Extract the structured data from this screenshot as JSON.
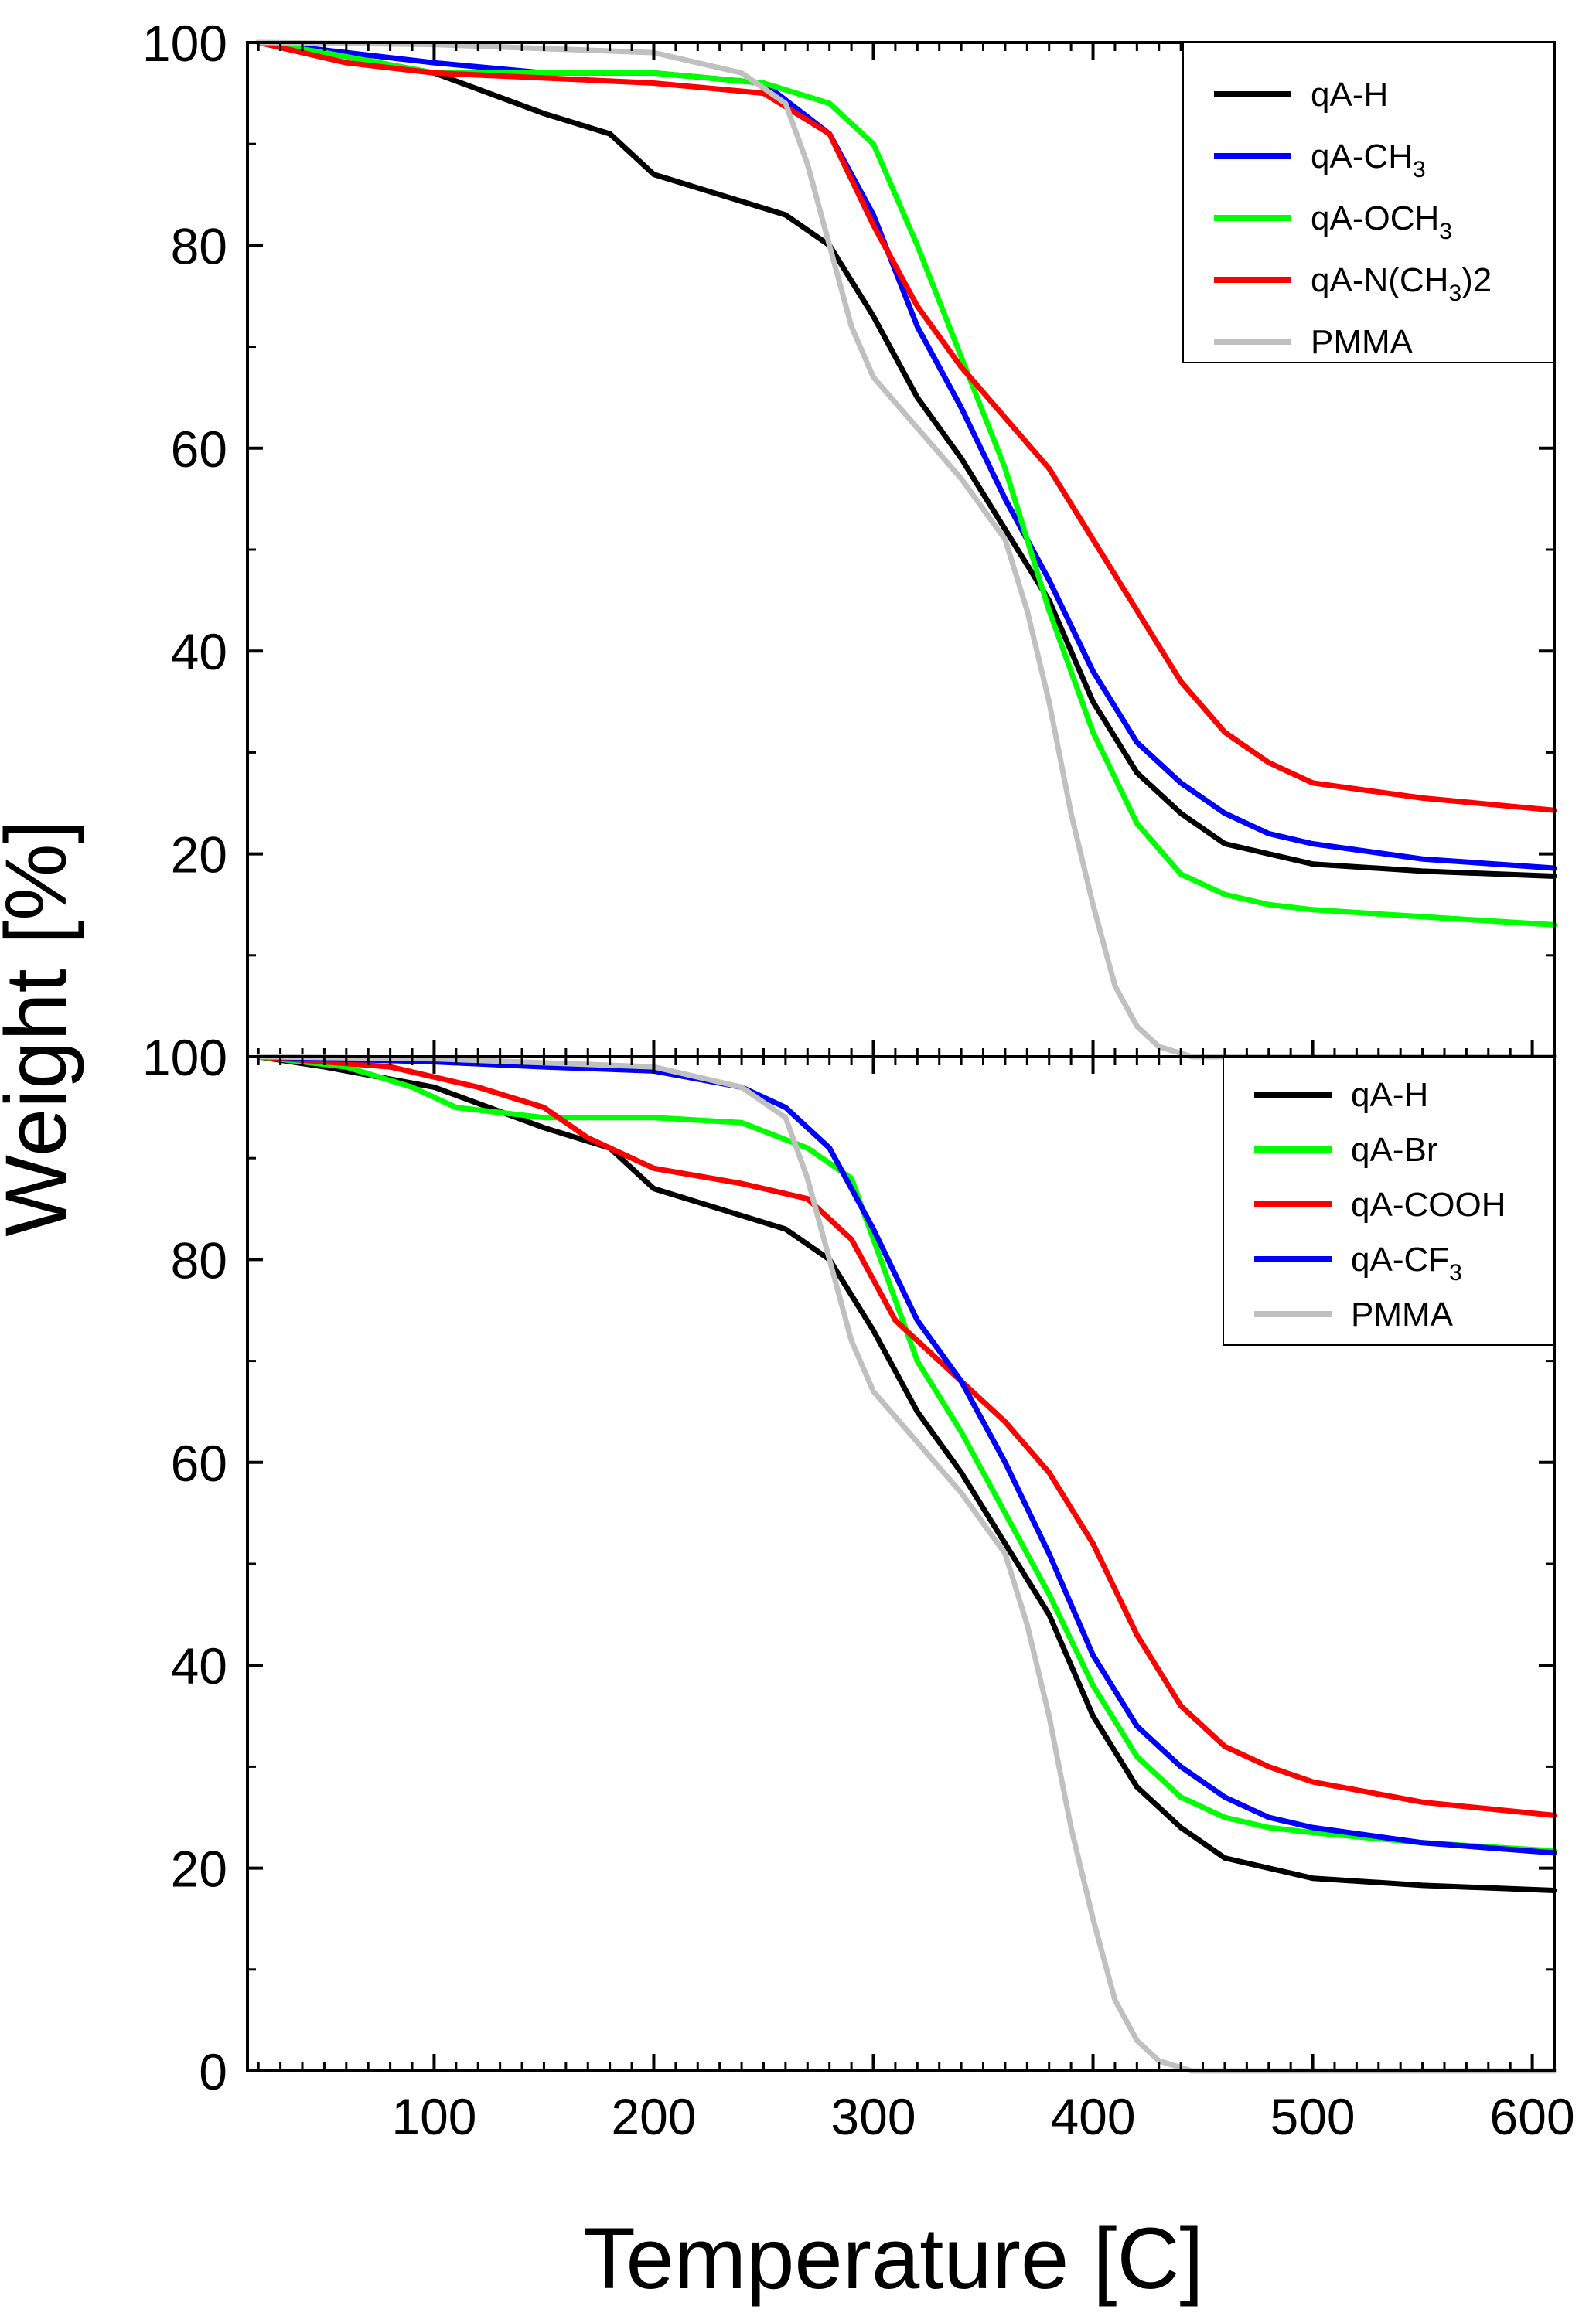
{
  "chart_data": [
    {
      "type": "line",
      "panel": "top",
      "xlabel": "Temperature [C]",
      "ylabel": "Weight [%]",
      "xlim": [
        15,
        610
      ],
      "ylim": [
        0,
        100
      ],
      "x_ticks": [
        "100",
        "200",
        "300",
        "400",
        "500",
        "600"
      ],
      "y_ticks": [
        "0",
        "20",
        "40",
        "60",
        "80",
        "100"
      ],
      "legend_position": "top-right",
      "series": [
        {
          "name": "qA-H",
          "label_main": "qA-H",
          "label_sub": "",
          "label_tail": "",
          "color": "#000000",
          "points": [
            [
              20,
              100
            ],
            [
              50,
              99
            ],
            [
              100,
              97
            ],
            [
              150,
              93
            ],
            [
              180,
              91
            ],
            [
              200,
              87
            ],
            [
              230,
              85
            ],
            [
              260,
              83
            ],
            [
              280,
              80
            ],
            [
              300,
              73
            ],
            [
              320,
              65
            ],
            [
              340,
              59
            ],
            [
              360,
              52
            ],
            [
              380,
              45
            ],
            [
              400,
              35
            ],
            [
              420,
              28
            ],
            [
              440,
              24
            ],
            [
              460,
              21
            ],
            [
              480,
              20
            ],
            [
              500,
              19
            ],
            [
              550,
              18.3
            ],
            [
              610,
              17.8
            ]
          ]
        },
        {
          "name": "qA-CH3",
          "label_main": "qA-CH",
          "label_sub": "3",
          "label_tail": "",
          "color": "#0000ff",
          "points": [
            [
              20,
              100
            ],
            [
              60,
              99
            ],
            [
              100,
              98
            ],
            [
              150,
              97
            ],
            [
              200,
              97
            ],
            [
              250,
              96
            ],
            [
              280,
              91
            ],
            [
              300,
              83
            ],
            [
              320,
              72
            ],
            [
              340,
              64
            ],
            [
              360,
              55
            ],
            [
              380,
              47
            ],
            [
              400,
              38
            ],
            [
              420,
              31
            ],
            [
              440,
              27
            ],
            [
              460,
              24
            ],
            [
              480,
              22
            ],
            [
              500,
              21
            ],
            [
              550,
              19.5
            ],
            [
              610,
              18.6
            ]
          ]
        },
        {
          "name": "qA-OCH3",
          "label_main": "qA-OCH",
          "label_sub": "3",
          "label_tail": "",
          "color": "#00ff00",
          "points": [
            [
              20,
              100
            ],
            [
              50,
              99
            ],
            [
              100,
              97
            ],
            [
              150,
              97
            ],
            [
              200,
              97
            ],
            [
              250,
              96
            ],
            [
              280,
              94
            ],
            [
              300,
              90
            ],
            [
              320,
              80
            ],
            [
              340,
              69
            ],
            [
              360,
              58
            ],
            [
              380,
              44
            ],
            [
              400,
              32
            ],
            [
              420,
              23
            ],
            [
              440,
              18
            ],
            [
              460,
              16
            ],
            [
              480,
              15
            ],
            [
              500,
              14.5
            ],
            [
              550,
              13.8
            ],
            [
              610,
              13
            ]
          ]
        },
        {
          "name": "qA-N(CH3)2",
          "label_main": "qA-N(CH",
          "label_sub": "3",
          "label_tail": ")2",
          "color": "#ff0000",
          "points": [
            [
              20,
              100
            ],
            [
              60,
              98
            ],
            [
              100,
              97
            ],
            [
              150,
              96.5
            ],
            [
              200,
              96
            ],
            [
              250,
              95
            ],
            [
              280,
              91
            ],
            [
              300,
              82
            ],
            [
              320,
              74
            ],
            [
              340,
              68
            ],
            [
              360,
              63
            ],
            [
              380,
              58
            ],
            [
              400,
              51
            ],
            [
              420,
              44
            ],
            [
              440,
              37
            ],
            [
              460,
              32
            ],
            [
              480,
              29
            ],
            [
              500,
              27
            ],
            [
              550,
              25.5
            ],
            [
              610,
              24.3
            ]
          ]
        },
        {
          "name": "PMMA",
          "label_main": "PMMA",
          "label_sub": "",
          "label_tail": "",
          "color": "#c0c0c0",
          "points": [
            [
              20,
              100
            ],
            [
              100,
              99.8
            ],
            [
              200,
              99
            ],
            [
              240,
              97
            ],
            [
              260,
              94
            ],
            [
              270,
              88
            ],
            [
              280,
              80
            ],
            [
              290,
              72
            ],
            [
              300,
              67
            ],
            [
              320,
              62
            ],
            [
              340,
              57
            ],
            [
              360,
              51
            ],
            [
              370,
              44
            ],
            [
              380,
              35
            ],
            [
              390,
              24
            ],
            [
              400,
              15
            ],
            [
              410,
              7
            ],
            [
              420,
              3
            ],
            [
              430,
              1
            ],
            [
              445,
              0
            ],
            [
              610,
              0
            ]
          ]
        }
      ]
    },
    {
      "type": "line",
      "panel": "bottom",
      "xlabel": "Temperature [C]",
      "ylabel": "Weight [%]",
      "xlim": [
        15,
        610
      ],
      "ylim": [
        0,
        100
      ],
      "x_ticks": [
        "100",
        "200",
        "300",
        "400",
        "500",
        "600"
      ],
      "y_ticks": [
        "0",
        "20",
        "40",
        "60",
        "80",
        "100"
      ],
      "legend_position": "top-right",
      "series": [
        {
          "name": "qA-H",
          "label_main": "qA-H",
          "label_sub": "",
          "label_tail": "",
          "color": "#000000",
          "points": [
            [
              20,
              100
            ],
            [
              50,
              99
            ],
            [
              100,
              97
            ],
            [
              150,
              93
            ],
            [
              180,
              91
            ],
            [
              200,
              87
            ],
            [
              230,
              85
            ],
            [
              260,
              83
            ],
            [
              280,
              80
            ],
            [
              300,
              73
            ],
            [
              320,
              65
            ],
            [
              340,
              59
            ],
            [
              360,
              52
            ],
            [
              380,
              45
            ],
            [
              400,
              35
            ],
            [
              420,
              28
            ],
            [
              440,
              24
            ],
            [
              460,
              21
            ],
            [
              480,
              20
            ],
            [
              500,
              19
            ],
            [
              550,
              18.3
            ],
            [
              610,
              17.8
            ]
          ]
        },
        {
          "name": "qA-Br",
          "label_main": "qA-Br",
          "label_sub": "",
          "label_tail": "",
          "color": "#00ff00",
          "points": [
            [
              20,
              100
            ],
            [
              60,
              99
            ],
            [
              90,
              97
            ],
            [
              110,
              95
            ],
            [
              150,
              94
            ],
            [
              200,
              94
            ],
            [
              240,
              93.5
            ],
            [
              270,
              91
            ],
            [
              290,
              88
            ],
            [
              300,
              82
            ],
            [
              320,
              70
            ],
            [
              340,
              63
            ],
            [
              360,
              55
            ],
            [
              380,
              47
            ],
            [
              400,
              38
            ],
            [
              420,
              31
            ],
            [
              440,
              27
            ],
            [
              460,
              25
            ],
            [
              480,
              24
            ],
            [
              500,
              23.5
            ],
            [
              550,
              22.5
            ],
            [
              610,
              21.7
            ]
          ]
        },
        {
          "name": "qA-COOH",
          "label_main": "qA-COOH",
          "label_sub": "",
          "label_tail": "",
          "color": "#ff0000",
          "points": [
            [
              20,
              100
            ],
            [
              80,
              99
            ],
            [
              120,
              97
            ],
            [
              150,
              95
            ],
            [
              170,
              92
            ],
            [
              200,
              89
            ],
            [
              240,
              87.5
            ],
            [
              270,
              86
            ],
            [
              290,
              82
            ],
            [
              310,
              74
            ],
            [
              340,
              68
            ],
            [
              360,
              64
            ],
            [
              380,
              59
            ],
            [
              400,
              52
            ],
            [
              420,
              43
            ],
            [
              440,
              36
            ],
            [
              460,
              32
            ],
            [
              480,
              30
            ],
            [
              500,
              28.5
            ],
            [
              550,
              26.5
            ],
            [
              610,
              25.2
            ]
          ]
        },
        {
          "name": "qA-CF3",
          "label_main": "qA-CF",
          "label_sub": "3",
          "label_tail": "",
          "color": "#0000ff",
          "points": [
            [
              20,
              100
            ],
            [
              100,
              99.5
            ],
            [
              150,
              99
            ],
            [
              200,
              98.6
            ],
            [
              240,
              97
            ],
            [
              260,
              95
            ],
            [
              280,
              91
            ],
            [
              300,
              83
            ],
            [
              320,
              74
            ],
            [
              340,
              68
            ],
            [
              360,
              60
            ],
            [
              380,
              51
            ],
            [
              400,
              41
            ],
            [
              420,
              34
            ],
            [
              440,
              30
            ],
            [
              460,
              27
            ],
            [
              480,
              25
            ],
            [
              500,
              24
            ],
            [
              550,
              22.5
            ],
            [
              610,
              21.5
            ]
          ]
        },
        {
          "name": "PMMA",
          "label_main": "PMMA",
          "label_sub": "",
          "label_tail": "",
          "color": "#c0c0c0",
          "points": [
            [
              20,
              100
            ],
            [
              100,
              99.8
            ],
            [
              200,
              99
            ],
            [
              240,
              97
            ],
            [
              260,
              94
            ],
            [
              270,
              88
            ],
            [
              280,
              80
            ],
            [
              290,
              72
            ],
            [
              300,
              67
            ],
            [
              320,
              62
            ],
            [
              340,
              57
            ],
            [
              360,
              51
            ],
            [
              370,
              44
            ],
            [
              380,
              35
            ],
            [
              390,
              24
            ],
            [
              400,
              15
            ],
            [
              410,
              7
            ],
            [
              420,
              3
            ],
            [
              430,
              1
            ],
            [
              445,
              0
            ],
            [
              610,
              0
            ]
          ]
        }
      ]
    }
  ]
}
